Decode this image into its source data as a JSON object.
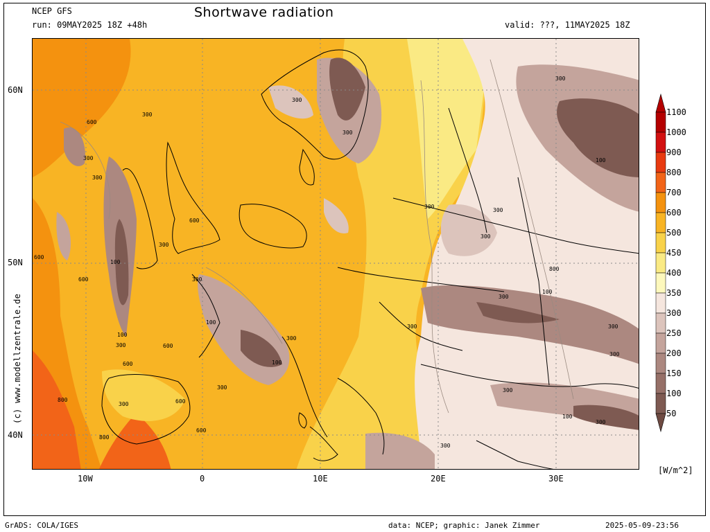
{
  "header": {
    "model": "NCEP GFS",
    "run": "run: 09MAY2025 18Z +48h",
    "title": "Shortwave radiation",
    "valid": "valid: ???, 11MAY2025 18Z"
  },
  "map": {
    "lat_labels": [
      "60N",
      "50N",
      "40N"
    ],
    "lon_labels": [
      "10W",
      "0",
      "10E",
      "20E",
      "30E"
    ],
    "contour_labels": [
      "600",
      "300",
      "300",
      "300",
      "300",
      "300",
      "300",
      "600",
      "300",
      "100",
      "600",
      "100",
      "300",
      "600",
      "600",
      "800",
      "100",
      "300",
      "300",
      "100",
      "300",
      "800",
      "600",
      "300",
      "300",
      "800",
      "600",
      "600",
      "300",
      "300",
      "100",
      "300",
      "300",
      "300",
      "100",
      "300",
      "300",
      "100",
      "300",
      "300"
    ]
  },
  "credit_vertical": "(c) www.modellzentrale.de",
  "legend": {
    "values": [
      "1100",
      "1000",
      "900",
      "800",
      "700",
      "600",
      "500",
      "450",
      "400",
      "350",
      "300",
      "250",
      "200",
      "150",
      "100",
      "50"
    ],
    "colors": [
      "#b40000",
      "#d21010",
      "#e83a10",
      "#f26418",
      "#f4920f",
      "#f8b424",
      "#f9d24a",
      "#faea84",
      "#fdf8bc",
      "#f5e6de",
      "#dcc4bc",
      "#c4a49c",
      "#ac8880",
      "#967068",
      "#7e5a52",
      "#6e4a42"
    ],
    "unit": "[W/m^2]"
  },
  "footer": {
    "left": "GrADS: COLA/IGES",
    "middle": "data: NCEP; graphic: Janek Zimmer",
    "right": "2025-05-09-23:56"
  }
}
